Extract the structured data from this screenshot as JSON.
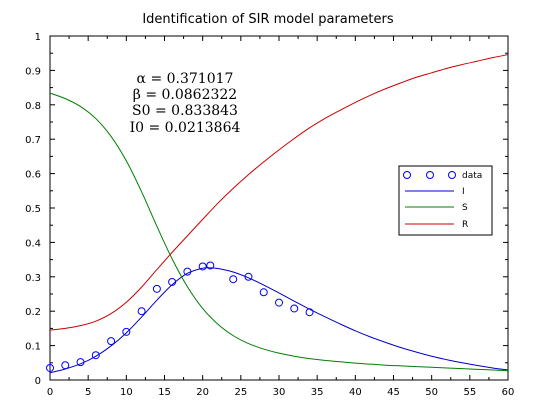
{
  "colors": {
    "data": "#0000ff",
    "I": "#0000cc",
    "S": "#007f00",
    "R": "#cc0000",
    "axes": "#000000"
  },
  "chart_data": {
    "type": "line",
    "title": "Identification of SIR model parameters",
    "xlabel": "",
    "ylabel": "",
    "xlim": [
      0,
      60
    ],
    "ylim": [
      0,
      1
    ],
    "xticks": [
      0,
      5,
      10,
      15,
      20,
      25,
      30,
      35,
      40,
      45,
      50,
      55,
      60
    ],
    "yticks": [
      0,
      0.1,
      0.2,
      0.3,
      0.4,
      0.5,
      0.6,
      0.7,
      0.8,
      0.9,
      1
    ],
    "grid": false,
    "legend_position": "right",
    "annotations": [
      "α = 0.371017",
      "β = 0.0862322",
      "S0 = 0.833843",
      "I0 = 0.0213864"
    ],
    "params": {
      "alpha": 0.371017,
      "beta": 0.0862322,
      "S0": 0.833843,
      "I0": 0.0213864
    },
    "series": [
      {
        "name": "data",
        "kind": "scatter",
        "x": [
          0,
          2,
          4,
          6,
          8,
          10,
          12,
          14,
          16,
          18,
          20,
          21,
          24,
          26,
          28,
          30,
          32,
          34
        ],
        "y": [
          0.035,
          0.043,
          0.052,
          0.072,
          0.113,
          0.14,
          0.2,
          0.265,
          0.285,
          0.315,
          0.33,
          0.333,
          0.293,
          0.3,
          0.255,
          0.225,
          0.208,
          0.197
        ]
      },
      {
        "name": "I",
        "kind": "line",
        "x": [
          0,
          2,
          4,
          6,
          8,
          10,
          12,
          14,
          16,
          18,
          20,
          21,
          22,
          24,
          26,
          28,
          30,
          32,
          34,
          36,
          38,
          40,
          42,
          44,
          46,
          48,
          50,
          52,
          54,
          56,
          58,
          60
        ],
        "y": [
          0.021,
          0.032,
          0.047,
          0.069,
          0.099,
          0.137,
          0.183,
          0.232,
          0.277,
          0.31,
          0.325,
          0.326,
          0.324,
          0.314,
          0.297,
          0.276,
          0.253,
          0.229,
          0.206,
          0.184,
          0.163,
          0.143,
          0.125,
          0.109,
          0.094,
          0.081,
          0.069,
          0.059,
          0.05,
          0.042,
          0.035,
          0.029
        ]
      },
      {
        "name": "S",
        "kind": "line",
        "x": [
          0,
          2,
          4,
          6,
          8,
          10,
          12,
          14,
          16,
          18,
          20,
          22,
          24,
          26,
          28,
          30,
          32,
          34,
          36,
          38,
          40,
          42,
          44,
          46,
          48,
          50,
          52,
          54,
          56,
          58,
          60
        ],
        "y": [
          0.834,
          0.818,
          0.795,
          0.76,
          0.708,
          0.637,
          0.547,
          0.447,
          0.352,
          0.271,
          0.208,
          0.162,
          0.129,
          0.106,
          0.09,
          0.078,
          0.069,
          0.062,
          0.057,
          0.053,
          0.049,
          0.046,
          0.043,
          0.041,
          0.039,
          0.037,
          0.035,
          0.033,
          0.031,
          0.029,
          0.027
        ]
      },
      {
        "name": "R",
        "kind": "line",
        "x": [
          0,
          2,
          4,
          6,
          8,
          10,
          12,
          14,
          16,
          18,
          20,
          22,
          24,
          26,
          28,
          30,
          32,
          34,
          36,
          38,
          40,
          42,
          44,
          46,
          48,
          50,
          52,
          54,
          56,
          58,
          60
        ],
        "y": [
          0.145,
          0.15,
          0.158,
          0.171,
          0.193,
          0.226,
          0.27,
          0.321,
          0.371,
          0.419,
          0.467,
          0.514,
          0.557,
          0.597,
          0.634,
          0.669,
          0.702,
          0.733,
          0.76,
          0.784,
          0.807,
          0.828,
          0.847,
          0.864,
          0.88,
          0.893,
          0.906,
          0.917,
          0.927,
          0.937,
          0.946
        ]
      }
    ]
  }
}
